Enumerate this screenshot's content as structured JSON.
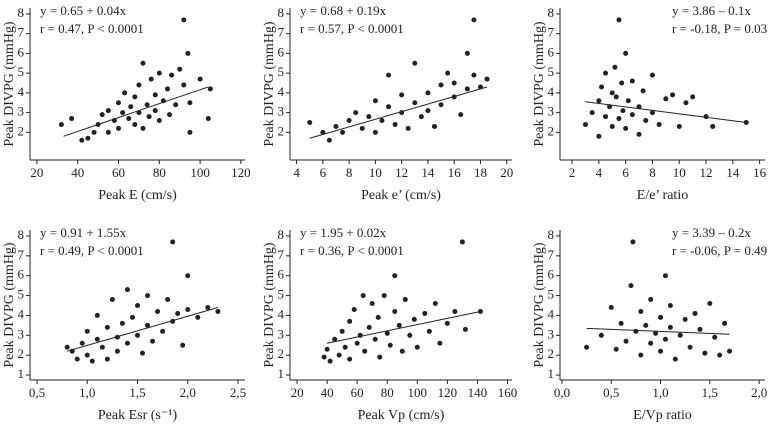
{
  "chart_data": [
    {
      "type": "scatter",
      "x_label": "Peak E (cm/s)",
      "y_label": "Peak DIVPG (mmHg)",
      "annotations": [
        "y = 0.65 + 0.04x",
        "r = 0.47, P < 0.0001"
      ],
      "color": "#222222",
      "x": [
        32,
        37,
        42,
        45,
        48,
        50,
        52,
        55,
        55,
        58,
        60,
        60,
        62,
        63,
        65,
        66,
        68,
        68,
        70,
        70,
        72,
        72,
        74,
        75,
        76,
        78,
        78,
        80,
        80,
        82,
        84,
        85,
        86,
        88,
        90,
        92,
        92,
        94,
        95,
        95,
        100,
        104,
        105
      ],
      "values": [
        2.4,
        2.7,
        1.6,
        1.7,
        2.0,
        2.4,
        2.9,
        2.0,
        3.1,
        2.6,
        3.5,
        2.2,
        3.0,
        4.0,
        2.7,
        3.3,
        2.4,
        3.8,
        3.0,
        4.4,
        2.2,
        5.5,
        3.4,
        2.8,
        4.7,
        3.1,
        3.9,
        2.6,
        5.0,
        3.6,
        4.2,
        2.9,
        4.9,
        3.4,
        5.2,
        4.4,
        7.7,
        6.0,
        3.5,
        2.0,
        4.7,
        2.7,
        4.2
      ],
      "trendline": {
        "x": [
          33,
          104
        ],
        "y": [
          1.8,
          4.3
        ]
      },
      "xlim": [
        16.6,
        122
      ],
      "ylim": [
        0.6,
        8.3
      ],
      "xticks": [
        20,
        40,
        60,
        80,
        100,
        120
      ],
      "yticks": [
        2,
        3,
        4,
        5,
        6,
        7,
        8
      ]
    },
    {
      "type": "scatter",
      "x_label": "Peak e’ (cm/s)",
      "y_label": "Peak DIVPG (mmHg)",
      "annotations": [
        "y = 0.68 + 0.19x",
        "r = 0.57, P < 0.0001"
      ],
      "color": "#222222",
      "x": [
        5,
        6,
        6.5,
        7,
        7.5,
        8,
        8.5,
        9,
        9.5,
        10,
        10,
        10.5,
        11,
        11,
        11.5,
        12,
        12,
        12.5,
        13,
        13,
        13.5,
        14,
        14,
        14.5,
        15,
        15,
        15.5,
        16,
        16,
        16.5,
        17,
        17,
        17.5,
        17.5,
        18,
        18.5
      ],
      "values": [
        2.5,
        2.0,
        1.6,
        2.3,
        2.0,
        2.6,
        3.0,
        2.2,
        2.8,
        3.6,
        2.0,
        2.6,
        3.3,
        4.9,
        2.4,
        3.0,
        3.9,
        2.2,
        3.5,
        5.5,
        2.8,
        4.0,
        3.1,
        2.3,
        4.4,
        3.4,
        5.0,
        3.8,
        4.5,
        2.9,
        4.2,
        6.0,
        7.7,
        4.9,
        4.3,
        4.7
      ],
      "trendline": {
        "x": [
          5,
          18.5
        ],
        "y": [
          1.7,
          4.3
        ]
      },
      "xlim": [
        3.5,
        20.4
      ],
      "ylim": [
        0.6,
        8.3
      ],
      "xticks": [
        4,
        6,
        8,
        10,
        12,
        14,
        16,
        18,
        20
      ],
      "yticks": [
        2,
        3,
        4,
        5,
        6,
        7,
        8
      ]
    },
    {
      "type": "scatter",
      "x_label": "E/e’ ratio",
      "y_label": "Peak DIVPG (mmHg)",
      "annotations": [
        "y = 3.86 – 0.1x",
        "r = -0.18, P = 0.03"
      ],
      "color": "#222222",
      "x": [
        3,
        3.5,
        4,
        4,
        4.2,
        4.5,
        4.5,
        4.8,
        5,
        5,
        5.2,
        5.3,
        5.5,
        5.5,
        5.7,
        5.8,
        6,
        6,
        6.2,
        6.5,
        6.5,
        7,
        7,
        7.3,
        7.5,
        8,
        8,
        8.5,
        9,
        9.5,
        10,
        10.5,
        11,
        12,
        12.5,
        15
      ],
      "values": [
        2.4,
        3.0,
        3.6,
        1.8,
        4.3,
        2.8,
        5.0,
        3.3,
        4.0,
        2.3,
        5.3,
        3.8,
        2.7,
        7.7,
        4.5,
        3.1,
        6.0,
        2.2,
        3.6,
        4.6,
        2.9,
        3.3,
        1.9,
        4.1,
        2.6,
        4.9,
        3.0,
        2.4,
        3.7,
        3.9,
        2.3,
        3.5,
        3.8,
        2.8,
        2.3,
        2.5
      ],
      "trendline": {
        "x": [
          3,
          15
        ],
        "y": [
          3.55,
          2.5
        ]
      },
      "xlim": [
        1.1,
        16.4
      ],
      "ylim": [
        0.6,
        8.3
      ],
      "xticks": [
        2,
        4,
        6,
        8,
        10,
        12,
        14,
        16
      ],
      "yticks": [
        2,
        3,
        4,
        5,
        6,
        7,
        8
      ]
    },
    {
      "type": "scatter",
      "x_label": "Peak Esr (s⁻¹)",
      "y_label": "Peak DIVPG (mmHg)",
      "annotations": [
        "y = 0.91 + 1.55x",
        "r = 0.49, P < 0.0001"
      ],
      "color": "#222222",
      "x": [
        0.8,
        0.85,
        0.9,
        0.95,
        1.0,
        1.0,
        1.05,
        1.1,
        1.1,
        1.15,
        1.2,
        1.2,
        1.25,
        1.3,
        1.3,
        1.35,
        1.4,
        1.4,
        1.45,
        1.5,
        1.5,
        1.55,
        1.6,
        1.6,
        1.65,
        1.7,
        1.75,
        1.8,
        1.85,
        1.85,
        1.9,
        1.95,
        2.0,
        2.0,
        2.1,
        2.2,
        2.3
      ],
      "values": [
        2.4,
        2.2,
        1.8,
        2.6,
        3.2,
        2.0,
        1.7,
        2.8,
        4.0,
        2.4,
        3.4,
        1.8,
        4.8,
        2.9,
        2.2,
        3.6,
        2.6,
        5.3,
        3.9,
        3.0,
        4.5,
        2.1,
        3.5,
        5.0,
        2.7,
        4.2,
        3.2,
        4.8,
        7.7,
        3.7,
        4.1,
        2.5,
        6.0,
        4.3,
        3.9,
        4.4,
        4.2
      ],
      "trendline": {
        "x": [
          0.8,
          2.3
        ],
        "y": [
          2.2,
          4.4
        ]
      },
      "xlim": [
        0.43,
        2.57
      ],
      "ylim": [
        0.75,
        8.3
      ],
      "xticks": [
        {
          "value": 0.5,
          "label": "0,5"
        },
        {
          "value": 1,
          "label": "1,0"
        },
        {
          "value": 1.5,
          "label": "1,5"
        },
        {
          "value": 2,
          "label": "2,0"
        },
        {
          "value": 2.5,
          "label": "2,5"
        }
      ],
      "yticks": [
        1,
        2,
        3,
        4,
        5,
        6,
        7,
        8
      ]
    },
    {
      "type": "scatter",
      "x_label": "Peak Vp (cm/s)",
      "y_label": "Peak DIVPG (mmHg)",
      "annotations": [
        "y = 1.95 + 0.02x",
        "r = 0.36, P < 0.0001"
      ],
      "color": "#222222",
      "x": [
        38,
        40,
        42,
        45,
        48,
        50,
        52,
        55,
        55,
        58,
        60,
        62,
        64,
        65,
        68,
        70,
        72,
        74,
        75,
        78,
        80,
        82,
        85,
        85,
        88,
        90,
        92,
        95,
        98,
        100,
        105,
        108,
        112,
        115,
        120,
        125,
        130,
        132,
        142
      ],
      "values": [
        1.9,
        2.3,
        1.7,
        2.8,
        2.0,
        3.2,
        2.4,
        3.7,
        1.8,
        4.3,
        2.6,
        3.0,
        5.0,
        2.2,
        3.4,
        4.6,
        2.8,
        3.9,
        1.9,
        5.0,
        3.1,
        2.5,
        4.2,
        6.0,
        3.5,
        2.2,
        4.8,
        3.0,
        3.8,
        2.4,
        4.1,
        3.2,
        4.6,
        2.6,
        3.6,
        4.2,
        7.7,
        3.3,
        4.2
      ],
      "trendline": {
        "x": [
          40,
          142
        ],
        "y": [
          2.6,
          4.2
        ]
      },
      "xlim": [
        15.3,
        163
      ],
      "ylim": [
        0.75,
        8.3
      ],
      "xticks": [
        20,
        40,
        60,
        80,
        100,
        120,
        140,
        160
      ],
      "yticks": [
        1,
        2,
        3,
        4,
        5,
        6,
        7,
        8
      ]
    },
    {
      "type": "scatter",
      "x_label": "E/Vp ratio",
      "y_label": "Peak DIVPG (mmHg)",
      "annotations": [
        "y = 3.39 – 0.2x",
        "r = -0.06, P = 0.49"
      ],
      "color": "#222222",
      "x": [
        0.25,
        0.4,
        0.5,
        0.55,
        0.6,
        0.65,
        0.7,
        0.72,
        0.75,
        0.8,
        0.8,
        0.85,
        0.9,
        0.9,
        0.95,
        1.0,
        1.0,
        1.05,
        1.05,
        1.1,
        1.1,
        1.15,
        1.2,
        1.25,
        1.3,
        1.35,
        1.4,
        1.45,
        1.5,
        1.55,
        1.6,
        1.65,
        1.7
      ],
      "values": [
        2.4,
        3.0,
        4.4,
        2.3,
        3.6,
        2.7,
        5.5,
        7.7,
        3.2,
        2.0,
        4.2,
        3.5,
        2.6,
        4.8,
        3.1,
        2.2,
        3.9,
        6.0,
        2.8,
        3.4,
        4.5,
        1.8,
        3.0,
        3.8,
        2.4,
        4.1,
        3.3,
        2.1,
        4.6,
        2.9,
        2.0,
        3.6,
        2.2
      ],
      "trendline": {
        "x": [
          0.25,
          1.7
        ],
        "y": [
          3.35,
          3.05
        ]
      },
      "xlim": [
        -0.02,
        2.06
      ],
      "ylim": [
        0.75,
        8.3
      ],
      "xticks": [
        {
          "value": 0,
          "label": "0,0"
        },
        {
          "value": 0.5,
          "label": "0,5"
        },
        {
          "value": 1,
          "label": "1,0"
        },
        {
          "value": 1.5,
          "label": "1,5"
        },
        {
          "value": 2,
          "label": "2,0"
        }
      ],
      "yticks": [
        1,
        2,
        3,
        4,
        5,
        6,
        7,
        8
      ]
    }
  ]
}
